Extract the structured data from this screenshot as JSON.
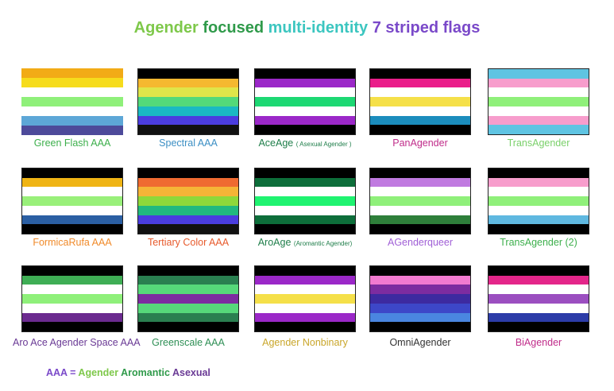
{
  "title": {
    "parts": [
      {
        "text": "Agender",
        "color": "#7ec84a"
      },
      {
        "text": "focused",
        "color": "#2f9a4a"
      },
      {
        "text": "multi-identity",
        "color": "#3cc6c0"
      },
      {
        "text": "7 striped flags",
        "color": "#7a49c9"
      }
    ]
  },
  "flags": [
    {
      "label": "Green Flash AAA",
      "label_sub": "",
      "label_color": "#3daf4c",
      "stripes": [
        "#f2ab16",
        "#f6dc1c",
        "#ffffff",
        "#8ff07a",
        "#ffffff",
        "#5da7d7",
        "#4d4a9a"
      ]
    },
    {
      "label": "Spectral AAA",
      "label_sub": "",
      "label_color": "#3c8fc4",
      "stripes": [
        "#000000",
        "#f5b830",
        "#dfe54a",
        "#53d97a",
        "#1ab9c3",
        "#4b3ddf",
        "#111111"
      ]
    },
    {
      "label": "AceAge",
      "label_sub": "( Asexual Agender )",
      "label_color": "#1f7e4a",
      "stripes": [
        "#000000",
        "#9b28c8",
        "#ffffff",
        "#1dd873",
        "#ffffff",
        "#9b28c8",
        "#000000"
      ]
    },
    {
      "label": "PanAgender",
      "label_sub": "",
      "label_color": "#c02c8a",
      "stripes": [
        "#000000",
        "#ea1d8a",
        "#ffffff",
        "#f5e049",
        "#ffffff",
        "#1b8dbd",
        "#000000"
      ]
    },
    {
      "label": "TransAgender",
      "label_sub": "",
      "label_color": "#7ad06a",
      "stripes": [
        "#5fc4e2",
        "#f79dcc",
        "#ffffff",
        "#8ff07a",
        "#ffffff",
        "#f79dcc",
        "#5fc4e2"
      ]
    },
    {
      "label": "FormicaRufa AAA",
      "label_sub": "",
      "label_color": "#f08a2a",
      "stripes": [
        "#000000",
        "#efb414",
        "#ffffff",
        "#99f07a",
        "#ffffff",
        "#2b5fa3",
        "#000000"
      ]
    },
    {
      "label": "Tertiary Color AAA",
      "label_sub": "",
      "label_color": "#e75a2c",
      "stripes": [
        "#000000",
        "#ef6a31",
        "#f5b437",
        "#8ed83a",
        "#21b97f",
        "#4a3ddf",
        "#111111"
      ]
    },
    {
      "label": "AroAge",
      "label_sub": "(Aromantic Agender)",
      "label_color": "#1f7e4a",
      "stripes": [
        "#000000",
        "#0d6e3a",
        "#ffffff",
        "#1ff370",
        "#ffffff",
        "#0d6e3a",
        "#000000"
      ]
    },
    {
      "label": "AGenderqueer",
      "label_sub": "",
      "label_color": "#a05fd6",
      "stripes": [
        "#000000",
        "#c07ae0",
        "#ffffff",
        "#8ff07a",
        "#ffffff",
        "#2e7f3a",
        "#000000"
      ]
    },
    {
      "label": "TransAgender (2)",
      "label_sub": "",
      "label_color": "#3daf4c",
      "stripes": [
        "#000000",
        "#f79dcc",
        "#ffffff",
        "#8ff07a",
        "#ffffff",
        "#5fb8e0",
        "#000000"
      ]
    },
    {
      "label": "Aro Ace Agender Space AAA",
      "label_sub": "",
      "label_color": "#6a3a95",
      "stripes": [
        "#000000",
        "#3fae55",
        "#ffffff",
        "#8ff07a",
        "#ffffff",
        "#6b2a8f",
        "#000000"
      ]
    },
    {
      "label": "Greenscale AAA",
      "label_sub": "",
      "label_color": "#2e8f55",
      "stripes": [
        "#000000",
        "#2a7f50",
        "#56d87a",
        "#7d2ca0",
        "#56d87a",
        "#2a7f50",
        "#000000"
      ]
    },
    {
      "label": "Agender Nonbinary",
      "label_sub": "",
      "label_color": "#c9a62a",
      "stripes": [
        "#000000",
        "#9b28c8",
        "#ffffff",
        "#f5e049",
        "#ffffff",
        "#9b28c8",
        "#000000"
      ]
    },
    {
      "label": "OmniAgender",
      "label_sub": "",
      "label_color": "#333333",
      "stripes": [
        "#000000",
        "#f27ad0",
        "#7d2ca0",
        "#3d2aa0",
        "#3d47c8",
        "#4a86e0",
        "#000000"
      ]
    },
    {
      "label": "BiAgender",
      "label_sub": "",
      "label_color": "#c02c8a",
      "stripes": [
        "#000000",
        "#e4268a",
        "#ffffff",
        "#9b4fc0",
        "#ffffff",
        "#2c3ca8",
        "#000000"
      ]
    }
  ],
  "footer": {
    "parts": [
      {
        "text": "AAA",
        "color": "#7a49c9"
      },
      {
        "text": " = ",
        "color": "#7a49c9"
      },
      {
        "text": "Agender",
        "color": "#7ec84a"
      },
      {
        "text": " Aromantic",
        "color": "#2f9a4a"
      },
      {
        "text": " Asexual",
        "color": "#6a3a95"
      }
    ]
  }
}
